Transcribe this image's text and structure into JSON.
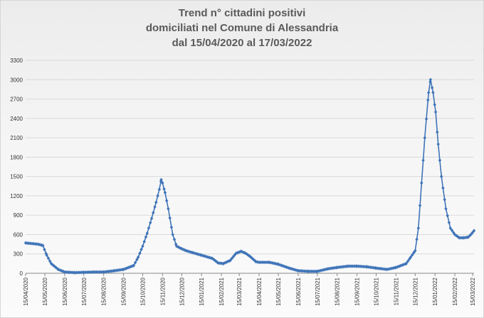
{
  "title": {
    "line1": "Trend n° cittadini positivi",
    "line2": "domiciliati nel Comune di Alessandria",
    "line3": "dal 15/04/2020 al 17/03/2022"
  },
  "chart_data": {
    "type": "line",
    "title": "Trend n° cittadini positivi domiciliati nel Comune di Alessandria dal 15/04/2020 al 17/03/2022",
    "xlabel": "",
    "ylabel": "",
    "ylim": [
      0,
      3300
    ],
    "yticks": [
      0,
      300,
      600,
      900,
      1200,
      1500,
      1800,
      2100,
      2400,
      2700,
      3000,
      3300
    ],
    "xticks": [
      "15/04/2020",
      "15/05/2020",
      "15/06/2020",
      "15/07/2020",
      "15/08/2020",
      "15/09/2020",
      "15/10/2020",
      "15/11/2020",
      "15/12/2020",
      "15/01/2021",
      "15/02/2021",
      "15/03/2021",
      "15/04/2021",
      "15/05/2021",
      "15/06/2021",
      "15/07/2021",
      "15/08/2021",
      "15/09/2021",
      "15/10/2021",
      "15/11/2021",
      "15/12/2021",
      "15/01/2022",
      "15/02/2022",
      "15/03/2022"
    ],
    "grid": true,
    "legend": "none",
    "color": "#3f74b8",
    "series": [
      {
        "x": [
          "2020-04-15",
          "2020-04-25",
          "2020-05-05",
          "2020-05-12",
          "2020-05-18",
          "2020-05-25",
          "2020-06-05",
          "2020-06-15",
          "2020-07-01",
          "2020-07-15",
          "2020-08-01",
          "2020-08-15",
          "2020-09-01",
          "2020-09-15",
          "2020-10-01",
          "2020-10-08",
          "2020-10-15",
          "2020-10-22",
          "2020-10-29",
          "2020-11-05",
          "2020-11-10",
          "2020-11-13",
          "2020-11-15",
          "2020-11-19",
          "2020-11-24",
          "2020-12-01",
          "2020-12-07",
          "2020-12-15",
          "2020-12-22",
          "2021-01-01",
          "2021-01-15",
          "2021-02-01",
          "2021-02-10",
          "2021-02-18",
          "2021-03-01",
          "2021-03-10",
          "2021-03-18",
          "2021-03-25",
          "2021-04-01",
          "2021-04-10",
          "2021-04-15",
          "2021-05-01",
          "2021-05-15",
          "2021-06-01",
          "2021-06-15",
          "2021-07-01",
          "2021-07-15",
          "2021-08-01",
          "2021-08-15",
          "2021-09-01",
          "2021-09-15",
          "2021-10-01",
          "2021-10-15",
          "2021-11-01",
          "2021-11-15",
          "2021-12-01",
          "2021-12-08",
          "2021-12-15",
          "2021-12-20",
          "2021-12-25",
          "2021-12-30",
          "2022-01-05",
          "2022-01-08",
          "2022-01-12",
          "2022-01-16",
          "2022-01-20",
          "2022-01-25",
          "2022-02-01",
          "2022-02-08",
          "2022-02-15",
          "2022-02-22",
          "2022-03-01",
          "2022-03-08",
          "2022-03-12",
          "2022-03-17"
        ],
        "y": [
          470,
          460,
          450,
          430,
          280,
          150,
          60,
          20,
          10,
          15,
          20,
          20,
          40,
          60,
          120,
          250,
          420,
          620,
          850,
          1100,
          1300,
          1450,
          1400,
          1250,
          1000,
          600,
          420,
          380,
          350,
          320,
          280,
          230,
          160,
          150,
          200,
          310,
          340,
          310,
          260,
          180,
          170,
          170,
          140,
          80,
          40,
          30,
          30,
          70,
          90,
          110,
          110,
          100,
          80,
          60,
          90,
          150,
          250,
          350,
          700,
          1400,
          2100,
          2800,
          3000,
          2800,
          2500,
          2000,
          1500,
          1000,
          700,
          600,
          550,
          550,
          560,
          600,
          660
        ]
      }
    ]
  }
}
